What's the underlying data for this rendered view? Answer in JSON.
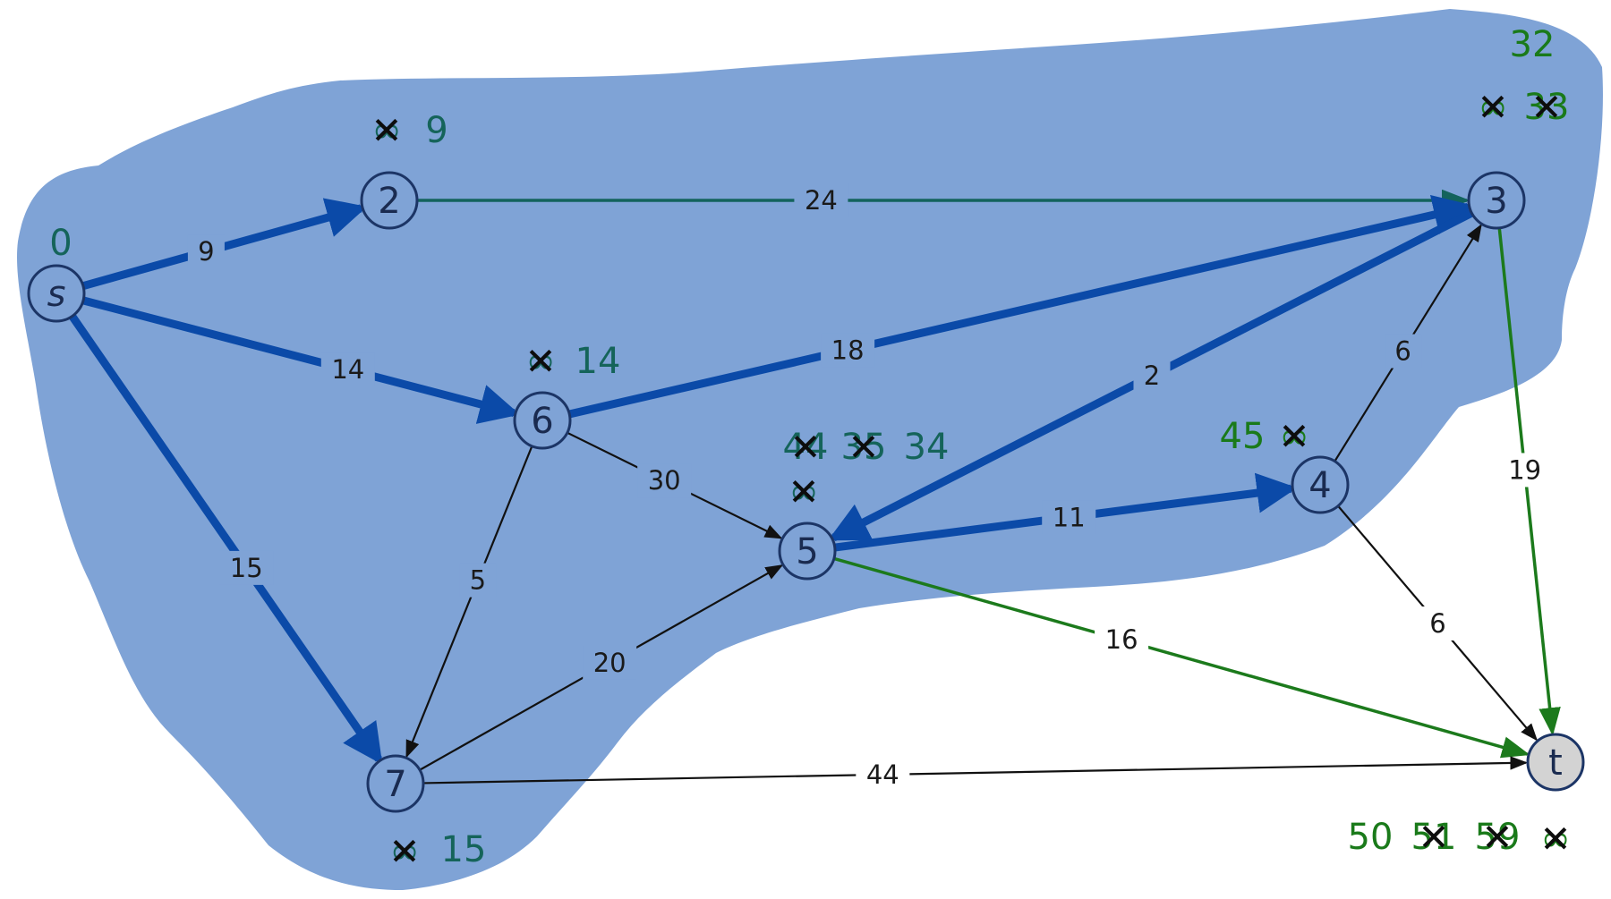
{
  "colors": {
    "region": "#7fa3d6",
    "node_fill": "#7fa3d6",
    "node_stroke": "#1c3566",
    "target_fill": "#d3d3d3",
    "tree_edge": "#0b4aa8",
    "teal_edge": "#13635c",
    "green_edge": "#1c7a1c",
    "black_edge": "#111111",
    "dist_text": "#1a7a1a",
    "dist_teal": "#15645a"
  },
  "nodes": [
    {
      "id": "s",
      "label": "s"
    },
    {
      "id": "2",
      "label": "2"
    },
    {
      "id": "3",
      "label": "3"
    },
    {
      "id": "4",
      "label": "4"
    },
    {
      "id": "5",
      "label": "5"
    },
    {
      "id": "6",
      "label": "6"
    },
    {
      "id": "7",
      "label": "7"
    },
    {
      "id": "t",
      "label": "t"
    }
  ],
  "edges": [
    {
      "from": "s",
      "to": "2",
      "weight": "9",
      "kind": "tree"
    },
    {
      "from": "s",
      "to": "6",
      "weight": "14",
      "kind": "tree"
    },
    {
      "from": "s",
      "to": "7",
      "weight": "15",
      "kind": "tree"
    },
    {
      "from": "2",
      "to": "3",
      "weight": "24",
      "kind": "teal"
    },
    {
      "from": "6",
      "to": "3",
      "weight": "18",
      "kind": "tree"
    },
    {
      "from": "3",
      "to": "5",
      "weight": "2",
      "kind": "tree"
    },
    {
      "from": "5",
      "to": "4",
      "weight": "11",
      "kind": "tree"
    },
    {
      "from": "6",
      "to": "5",
      "weight": "30",
      "kind": "black"
    },
    {
      "from": "6",
      "to": "7",
      "weight": "5",
      "kind": "black"
    },
    {
      "from": "7",
      "to": "5",
      "weight": "20",
      "kind": "black"
    },
    {
      "from": "4",
      "to": "3",
      "weight": "6",
      "kind": "black"
    },
    {
      "from": "4",
      "to": "t",
      "weight": "6",
      "kind": "black"
    },
    {
      "from": "3",
      "to": "t",
      "weight": "19",
      "kind": "green"
    },
    {
      "from": "5",
      "to": "t",
      "weight": "16",
      "kind": "green"
    },
    {
      "from": "7",
      "to": "t",
      "weight": "44",
      "kind": "black"
    }
  ],
  "distances": {
    "s": [
      "0"
    ],
    "2": [
      "∞",
      "9"
    ],
    "3": [
      "32",
      "∞",
      "33"
    ],
    "4": [
      "45",
      "∞"
    ],
    "5": [
      "44",
      "35",
      "34",
      "∞"
    ],
    "6": [
      "∞",
      "14"
    ],
    "7": [
      "∞",
      "15"
    ],
    "t": [
      "50",
      "51",
      "59",
      "∞"
    ]
  },
  "crossed_mark": "✕"
}
